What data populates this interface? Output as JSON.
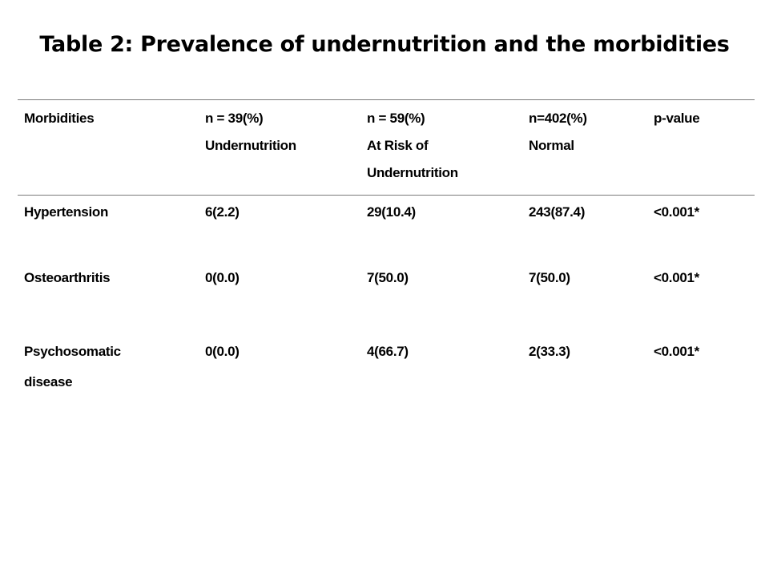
{
  "title": "Table 2: Prevalence of undernutrition and the morbidities",
  "table": {
    "headers": [
      [
        "Morbidities"
      ],
      [
        "n = 39(%)",
        "Undernutrition"
      ],
      [
        "n = 59(%)",
        "At Risk of",
        "Undernutrition"
      ],
      [
        "n=402(%)",
        "Normal"
      ],
      [
        "p-value"
      ]
    ],
    "rows": [
      {
        "morbidity": [
          "Hypertension"
        ],
        "undernutrition": "6(2.2)",
        "at_risk": "29(10.4)",
        "normal": "243(87.4)",
        "p_value": "<0.001*"
      },
      {
        "morbidity": [
          "Osteoarthritis"
        ],
        "undernutrition": "0(0.0)",
        "at_risk": "7(50.0)",
        "normal": "7(50.0)",
        "p_value": "<0.001*"
      },
      {
        "morbidity": [
          "Psychosomatic",
          "disease"
        ],
        "undernutrition": "0(0.0)",
        "at_risk": "4(66.7)",
        "normal": "2(33.3)",
        "p_value": "<0.001*"
      }
    ]
  }
}
